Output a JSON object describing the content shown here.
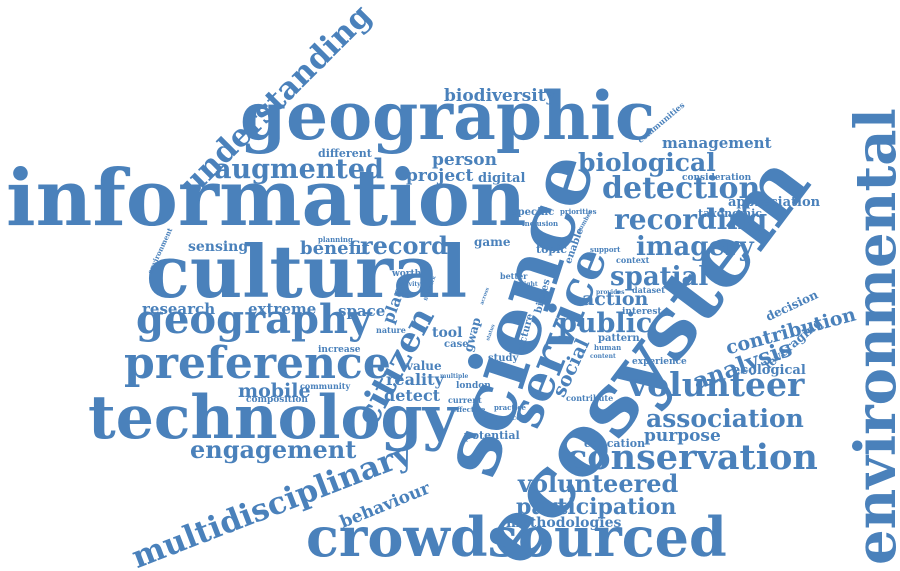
{
  "cloud": {
    "color": "#4a81bb",
    "words": [
      "understanding",
      "geographic",
      "biodiversity",
      "communities",
      "management",
      "environmental",
      "information",
      "cultural",
      "science",
      "ecosystem",
      "crowdsourced",
      "technology",
      "geography",
      "preference",
      "service",
      "citizen",
      "multidisciplinary",
      "volunteer",
      "conservation",
      "engagement",
      "augmented",
      "biological",
      "detection",
      "recording",
      "imagery",
      "spatial",
      "public",
      "action",
      "analysis",
      "contribution",
      "association",
      "purpose",
      "volunteered",
      "participation",
      "methodologies",
      "behaviour",
      "mobile",
      "record",
      "benefit",
      "sensing",
      "research",
      "extreme",
      "space",
      "place",
      "social",
      "reality",
      "detect",
      "person",
      "project",
      "digital",
      "different",
      "consideration",
      "appreciation",
      "taxonomic",
      "decision",
      "ecological",
      "leveraging",
      "experience",
      "education",
      "potential",
      "contribute",
      "game",
      "topic",
      "specific",
      "inclusion",
      "priorities",
      "enable",
      "support",
      "context",
      "worth",
      "planning",
      "environment",
      "tool",
      "case",
      "nature",
      "increase",
      "value",
      "community",
      "composition",
      "london",
      "current",
      "effective",
      "practice",
      "sequence",
      "study",
      "pattern",
      "dataset",
      "interest",
      "gwap",
      "picture",
      "biases",
      "better",
      "insight",
      "multiple",
      "human",
      "content",
      "activity",
      "degree",
      "provides",
      "number",
      "fieldwork",
      "across",
      "status"
    ]
  }
}
